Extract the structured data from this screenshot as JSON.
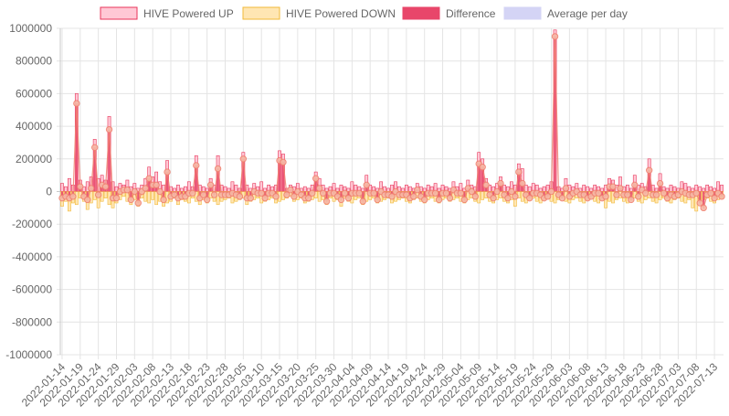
{
  "chart_data": {
    "type": "bar",
    "title": "",
    "xlabel": "",
    "ylabel": "",
    "ylim": [
      -1000000,
      1000000
    ],
    "y_ticks": [
      "1000000",
      "800000",
      "600000",
      "400000",
      "200000",
      "0",
      "-200000",
      "-400000",
      "-600000",
      "-800000",
      "-1000000"
    ],
    "x_tick_labels": [
      "2022-01-14",
      "2022-01-19",
      "2022-01-24",
      "2022-01-29",
      "2022-02-03",
      "2022-02-08",
      "2022-02-13",
      "2022-02-18",
      "2022-02-23",
      "2022-02-28",
      "2022-03-05",
      "2022-03-10",
      "2022-03-15",
      "2022-03-20",
      "2022-03-25",
      "2022-03-30",
      "2022-04-04",
      "2022-04-09",
      "2022-04-14",
      "2022-04-19",
      "2022-04-24",
      "2022-04-29",
      "2022-05-04",
      "2022-05-09",
      "2022-05-14",
      "2022-05-19",
      "2022-05-24",
      "2022-05-29",
      "2022-06-03",
      "2022-06-08",
      "2022-06-13",
      "2022-06-18",
      "2022-06-23",
      "2022-06-28",
      "2022-07-03",
      "2022-07-08",
      "2022-07-13"
    ],
    "grid": true,
    "legend_position": "top",
    "colors": {
      "up_fill": "#ffc8d5",
      "up_border": "#e8355a",
      "down_fill": "#ffe6b3",
      "down_border": "#f2b93a",
      "diff_fill": "#e8466a",
      "avg_fill": "#d4d4f5",
      "avg_line": "#f08070",
      "grid": "#e4e4e4"
    },
    "series": [
      {
        "name": "HIVE Powered UP",
        "key": "up"
      },
      {
        "name": "HIVE Powered DOWN",
        "key": "down"
      },
      {
        "name": "Difference",
        "key": "diff"
      },
      {
        "name": "Average per day",
        "key": "avg"
      }
    ],
    "x": [
      "2022-01-14",
      "2022-01-15",
      "2022-01-16",
      "2022-01-17",
      "2022-01-18",
      "2022-01-19",
      "2022-01-20",
      "2022-01-21",
      "2022-01-22",
      "2022-01-23",
      "2022-01-24",
      "2022-01-25",
      "2022-01-26",
      "2022-01-27",
      "2022-01-28",
      "2022-01-29",
      "2022-01-30",
      "2022-01-31",
      "2022-02-01",
      "2022-02-02",
      "2022-02-03",
      "2022-02-04",
      "2022-02-05",
      "2022-02-06",
      "2022-02-07",
      "2022-02-08",
      "2022-02-09",
      "2022-02-10",
      "2022-02-11",
      "2022-02-12",
      "2022-02-13",
      "2022-02-14",
      "2022-02-15",
      "2022-02-16",
      "2022-02-17",
      "2022-02-18",
      "2022-02-19",
      "2022-02-20",
      "2022-02-21",
      "2022-02-22",
      "2022-02-23",
      "2022-02-24",
      "2022-02-25",
      "2022-02-26",
      "2022-02-27",
      "2022-02-28",
      "2022-03-01",
      "2022-03-02",
      "2022-03-03",
      "2022-03-04",
      "2022-03-05",
      "2022-03-06",
      "2022-03-07",
      "2022-03-08",
      "2022-03-09",
      "2022-03-10",
      "2022-03-11",
      "2022-03-12",
      "2022-03-13",
      "2022-03-14",
      "2022-03-15",
      "2022-03-16",
      "2022-03-17",
      "2022-03-18",
      "2022-03-19",
      "2022-03-20",
      "2022-03-21",
      "2022-03-22",
      "2022-03-23",
      "2022-03-24",
      "2022-03-25",
      "2022-03-26",
      "2022-03-27",
      "2022-03-28",
      "2022-03-29",
      "2022-03-30",
      "2022-03-31",
      "2022-04-01",
      "2022-04-02",
      "2022-04-03",
      "2022-04-04",
      "2022-04-05",
      "2022-04-06",
      "2022-04-07",
      "2022-04-08",
      "2022-04-09",
      "2022-04-10",
      "2022-04-11",
      "2022-04-12",
      "2022-04-13",
      "2022-04-14",
      "2022-04-15",
      "2022-04-16",
      "2022-04-17",
      "2022-04-18",
      "2022-04-19",
      "2022-04-20",
      "2022-04-21",
      "2022-04-22",
      "2022-04-23",
      "2022-04-24",
      "2022-04-25",
      "2022-04-26",
      "2022-04-27",
      "2022-04-28",
      "2022-04-29",
      "2022-04-30",
      "2022-05-01",
      "2022-05-02",
      "2022-05-03",
      "2022-05-04",
      "2022-05-05",
      "2022-05-06",
      "2022-05-07",
      "2022-05-08",
      "2022-05-09",
      "2022-05-10",
      "2022-05-11",
      "2022-05-12",
      "2022-05-13",
      "2022-05-14",
      "2022-05-15",
      "2022-05-16",
      "2022-05-17",
      "2022-05-18",
      "2022-05-19",
      "2022-05-20",
      "2022-05-21",
      "2022-05-22",
      "2022-05-23",
      "2022-05-24",
      "2022-05-25",
      "2022-05-26",
      "2022-05-27",
      "2022-05-28",
      "2022-05-29",
      "2022-05-30",
      "2022-05-31",
      "2022-06-01",
      "2022-06-02",
      "2022-06-03",
      "2022-06-04",
      "2022-06-05",
      "2022-06-06",
      "2022-06-07",
      "2022-06-08",
      "2022-06-09",
      "2022-06-10",
      "2022-06-11",
      "2022-06-12",
      "2022-06-13",
      "2022-06-14",
      "2022-06-15",
      "2022-06-16",
      "2022-06-17",
      "2022-06-18",
      "2022-06-19",
      "2022-06-20",
      "2022-06-21",
      "2022-06-22",
      "2022-06-23",
      "2022-06-24",
      "2022-06-25",
      "2022-06-26",
      "2022-06-27",
      "2022-06-28",
      "2022-06-29",
      "2022-06-30",
      "2022-07-01",
      "2022-07-02",
      "2022-07-03",
      "2022-07-04",
      "2022-07-05",
      "2022-07-06",
      "2022-07-07",
      "2022-07-08",
      "2022-07-09",
      "2022-07-10",
      "2022-07-11",
      "2022-07-12",
      "2022-07-13",
      "2022-07-14",
      "2022-07-15"
    ],
    "up": [
      50000,
      30000,
      80000,
      40000,
      600000,
      70000,
      30000,
      60000,
      90000,
      320000,
      80000,
      100000,
      70000,
      460000,
      60000,
      30000,
      50000,
      40000,
      70000,
      30000,
      50000,
      20000,
      40000,
      80000,
      150000,
      90000,
      120000,
      60000,
      40000,
      190000,
      30000,
      20000,
      40000,
      20000,
      30000,
      60000,
      30000,
      220000,
      40000,
      30000,
      20000,
      80000,
      40000,
      220000,
      40000,
      30000,
      20000,
      60000,
      40000,
      20000,
      240000,
      40000,
      20000,
      50000,
      30000,
      60000,
      20000,
      40000,
      30000,
      40000,
      250000,
      230000,
      20000,
      40000,
      30000,
      50000,
      20000,
      30000,
      20000,
      40000,
      120000,
      80000,
      40000,
      20000,
      30000,
      50000,
      20000,
      40000,
      30000,
      20000,
      60000,
      40000,
      30000,
      20000,
      100000,
      40000,
      30000,
      20000,
      60000,
      30000,
      20000,
      40000,
      60000,
      30000,
      20000,
      40000,
      30000,
      20000,
      50000,
      30000,
      20000,
      40000,
      30000,
      50000,
      20000,
      40000,
      30000,
      20000,
      60000,
      30000,
      50000,
      20000,
      70000,
      40000,
      30000,
      240000,
      200000,
      80000,
      40000,
      30000,
      50000,
      90000,
      40000,
      30000,
      60000,
      40000,
      170000,
      140000,
      40000,
      30000,
      50000,
      40000,
      20000,
      30000,
      40000,
      60000,
      990000,
      30000,
      20000,
      80000,
      40000,
      30000,
      50000,
      20000,
      40000,
      30000,
      20000,
      40000,
      30000,
      20000,
      40000,
      80000,
      70000,
      40000,
      90000,
      30000,
      40000,
      20000,
      100000,
      40000,
      50000,
      30000,
      200000,
      40000,
      20000,
      110000,
      30000,
      20000,
      40000,
      30000,
      20000,
      60000,
      50000,
      30000,
      20000,
      40000,
      30000,
      20000,
      40000,
      30000,
      20000,
      60000,
      40000,
      50000
    ],
    "down": [
      -90000,
      -60000,
      -120000,
      -70000,
      -80000,
      -40000,
      -60000,
      -110000,
      -70000,
      -50000,
      -100000,
      -60000,
      -40000,
      -80000,
      -100000,
      -70000,
      -50000,
      -30000,
      -60000,
      -80000,
      -50000,
      -90000,
      -40000,
      -60000,
      -70000,
      -50000,
      -80000,
      -60000,
      -90000,
      -70000,
      -60000,
      -40000,
      -80000,
      -50000,
      -60000,
      -70000,
      -40000,
      -60000,
      -80000,
      -50000,
      -70000,
      -40000,
      -60000,
      -80000,
      -60000,
      -50000,
      -40000,
      -70000,
      -60000,
      -50000,
      -40000,
      -80000,
      -60000,
      -50000,
      -40000,
      -70000,
      -60000,
      -50000,
      -40000,
      -70000,
      -60000,
      -50000,
      -40000,
      -30000,
      -60000,
      -50000,
      -40000,
      -70000,
      -60000,
      -50000,
      -40000,
      -60000,
      -50000,
      -80000,
      -40000,
      -60000,
      -50000,
      -90000,
      -40000,
      -60000,
      -70000,
      -50000,
      -40000,
      -80000,
      -60000,
      -50000,
      -40000,
      -70000,
      -60000,
      -50000,
      -40000,
      -70000,
      -60000,
      -50000,
      -40000,
      -60000,
      -70000,
      -50000,
      -40000,
      -60000,
      -70000,
      -50000,
      -40000,
      -60000,
      -70000,
      -50000,
      -40000,
      -60000,
      -50000,
      -40000,
      -60000,
      -70000,
      -50000,
      -40000,
      -60000,
      -70000,
      -50000,
      -40000,
      -60000,
      -70000,
      -50000,
      -40000,
      -60000,
      -70000,
      -50000,
      -90000,
      -40000,
      -60000,
      -70000,
      -50000,
      -40000,
      -60000,
      -70000,
      -50000,
      -40000,
      -60000,
      -70000,
      -50000,
      -40000,
      -60000,
      -70000,
      -50000,
      -40000,
      -60000,
      -70000,
      -50000,
      -40000,
      -60000,
      -70000,
      -50000,
      -100000,
      -60000,
      -70000,
      -50000,
      -40000,
      -60000,
      -70000,
      -50000,
      -40000,
      -60000,
      -70000,
      -50000,
      -40000,
      -60000,
      -70000,
      -50000,
      -40000,
      -60000,
      -70000,
      -50000,
      -40000,
      -60000,
      -70000,
      -50000,
      -100000,
      -120000,
      -60000,
      -50000,
      -40000,
      -60000,
      -70000,
      -50000,
      -40000,
      -60000
    ],
    "diff": [
      -40000,
      -30000,
      -40000,
      -30000,
      540000,
      30000,
      -30000,
      -50000,
      20000,
      270000,
      -20000,
      40000,
      30000,
      380000,
      -40000,
      -40000,
      0,
      10000,
      10000,
      -50000,
      0,
      -70000,
      0,
      20000,
      80000,
      40000,
      40000,
      0,
      -50000,
      120000,
      -30000,
      -20000,
      -40000,
      -30000,
      -30000,
      -10000,
      -10000,
      160000,
      -40000,
      -20000,
      -50000,
      40000,
      -20000,
      140000,
      -20000,
      -20000,
      -20000,
      -10000,
      -20000,
      -30000,
      200000,
      -40000,
      -40000,
      0,
      -10000,
      -10000,
      -40000,
      -10000,
      -10000,
      -30000,
      190000,
      180000,
      -20000,
      10000,
      -30000,
      0,
      -20000,
      -40000,
      -40000,
      -10000,
      80000,
      20000,
      -10000,
      -60000,
      -10000,
      -10000,
      -30000,
      -50000,
      -10000,
      -40000,
      -10000,
      -10000,
      -10000,
      -60000,
      40000,
      -10000,
      -10000,
      -50000,
      0,
      -20000,
      -20000,
      -30000,
      0,
      -20000,
      -20000,
      -20000,
      -40000,
      -30000,
      10000,
      -30000,
      -50000,
      -10000,
      -10000,
      -10000,
      -50000,
      -10000,
      -10000,
      -40000,
      10000,
      -10000,
      -10000,
      -50000,
      20000,
      0,
      -30000,
      170000,
      150000,
      40000,
      -20000,
      -40000,
      0,
      50000,
      -20000,
      -40000,
      0,
      -30000,
      120000,
      50000,
      -20000,
      -40000,
      -10000,
      -10000,
      -20000,
      -40000,
      -30000,
      0,
      950000,
      -20000,
      -40000,
      20000,
      -30000,
      -10000,
      0,
      -20000,
      -20000,
      -40000,
      -30000,
      -10000,
      -10000,
      -40000,
      -30000,
      30000,
      30000,
      -20000,
      20000,
      -20000,
      -20000,
      -50000,
      40000,
      -30000,
      10000,
      -10000,
      130000,
      -20000,
      -20000,
      50000,
      -10000,
      -40000,
      -20000,
      -30000,
      -20000,
      0,
      -10000,
      -20000,
      -20000,
      -10000,
      -70000,
      -100000,
      -20000,
      -10000,
      -40000,
      -10000,
      -30000,
      10000,
      0,
      -10000
    ]
  },
  "legend": [
    {
      "label": "HIVE Powered UP",
      "key": "up"
    },
    {
      "label": "HIVE Powered DOWN",
      "key": "down"
    },
    {
      "label": "Difference",
      "key": "diff"
    },
    {
      "label": "Average per day",
      "key": "avg"
    }
  ]
}
